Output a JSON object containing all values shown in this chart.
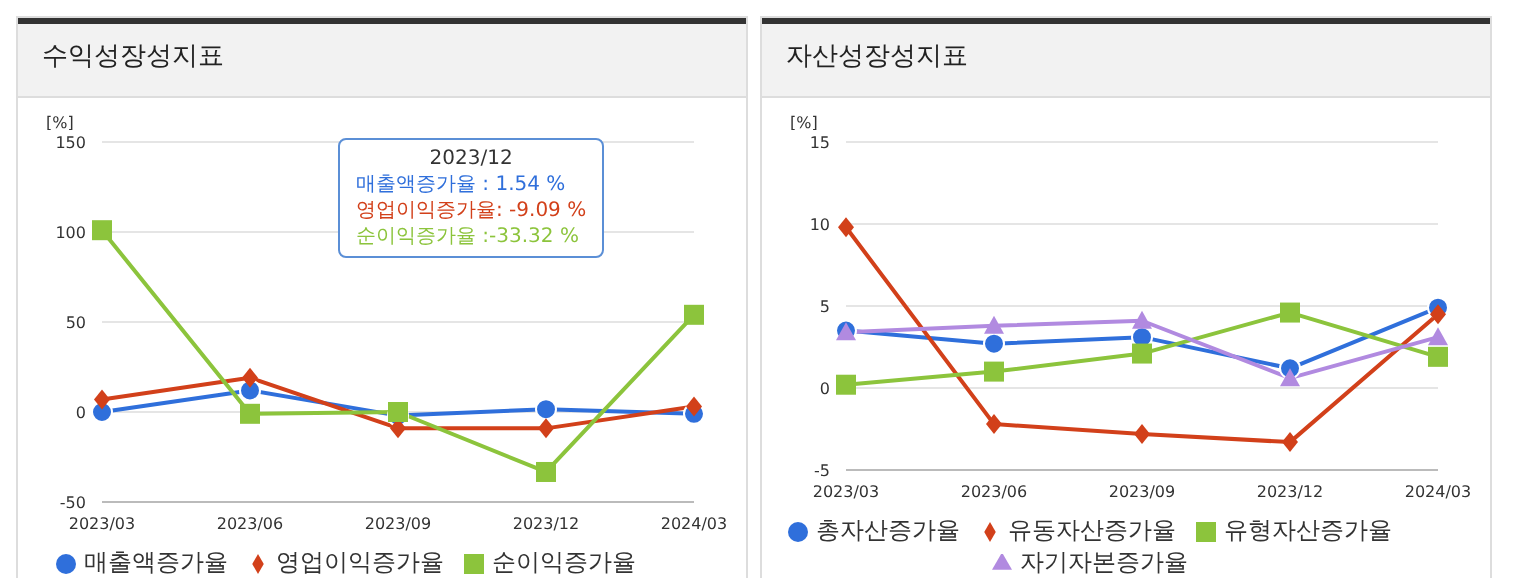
{
  "chart_data": [
    {
      "type": "line",
      "title": "수익성장성지표",
      "ylabel": "[%]",
      "categories": [
        "2023/03",
        "2023/06",
        "2023/09",
        "2023/12",
        "2024/03"
      ],
      "series": [
        {
          "name": "매출액증가율",
          "color": "#2f6fdb",
          "marker": "circle",
          "values": [
            0,
            12,
            -2,
            1.54,
            -1
          ]
        },
        {
          "name": "영업이익증가율",
          "color": "#d2401a",
          "marker": "diamond",
          "values": [
            7,
            19,
            -9,
            -9.09,
            3
          ]
        },
        {
          "name": "순이익증가율",
          "color": "#8cc43c",
          "marker": "square",
          "values": [
            101,
            -1,
            0,
            -33.32,
            54
          ]
        }
      ],
      "ylim": [
        -50,
        150
      ],
      "yticks": [
        -50,
        0,
        50,
        100,
        150
      ],
      "grid": "y",
      "legend": "bottom",
      "annotations": [
        "2023/12",
        "매출액증가율 : 1.54 %",
        "영업이익증가율: -9.09 %",
        "순이익증가율 :-33.32 %"
      ]
    },
    {
      "type": "line",
      "title": "자산성장성지표",
      "ylabel": "[%]",
      "categories": [
        "2023/03",
        "2023/06",
        "2023/09",
        "2023/12",
        "2024/03"
      ],
      "series": [
        {
          "name": "총자산증가율",
          "color": "#2f6fdb",
          "marker": "circle",
          "values": [
            3.5,
            2.7,
            3.1,
            1.2,
            4.9
          ]
        },
        {
          "name": "유동자산증가율",
          "color": "#d2401a",
          "marker": "diamond",
          "values": [
            9.8,
            -2.2,
            -2.8,
            -3.3,
            4.5
          ]
        },
        {
          "name": "유형자산증가율",
          "color": "#8cc43c",
          "marker": "square",
          "values": [
            0.2,
            1.0,
            2.1,
            4.6,
            1.9
          ]
        },
        {
          "name": "자기자본증가율",
          "color": "#b18ae0",
          "marker": "triangle",
          "values": [
            3.4,
            3.8,
            4.1,
            0.6,
            3.1
          ]
        }
      ],
      "ylim": [
        -5,
        15
      ],
      "yticks": [
        -5,
        0,
        5,
        10,
        15
      ],
      "grid": "y",
      "legend": "bottom"
    }
  ]
}
